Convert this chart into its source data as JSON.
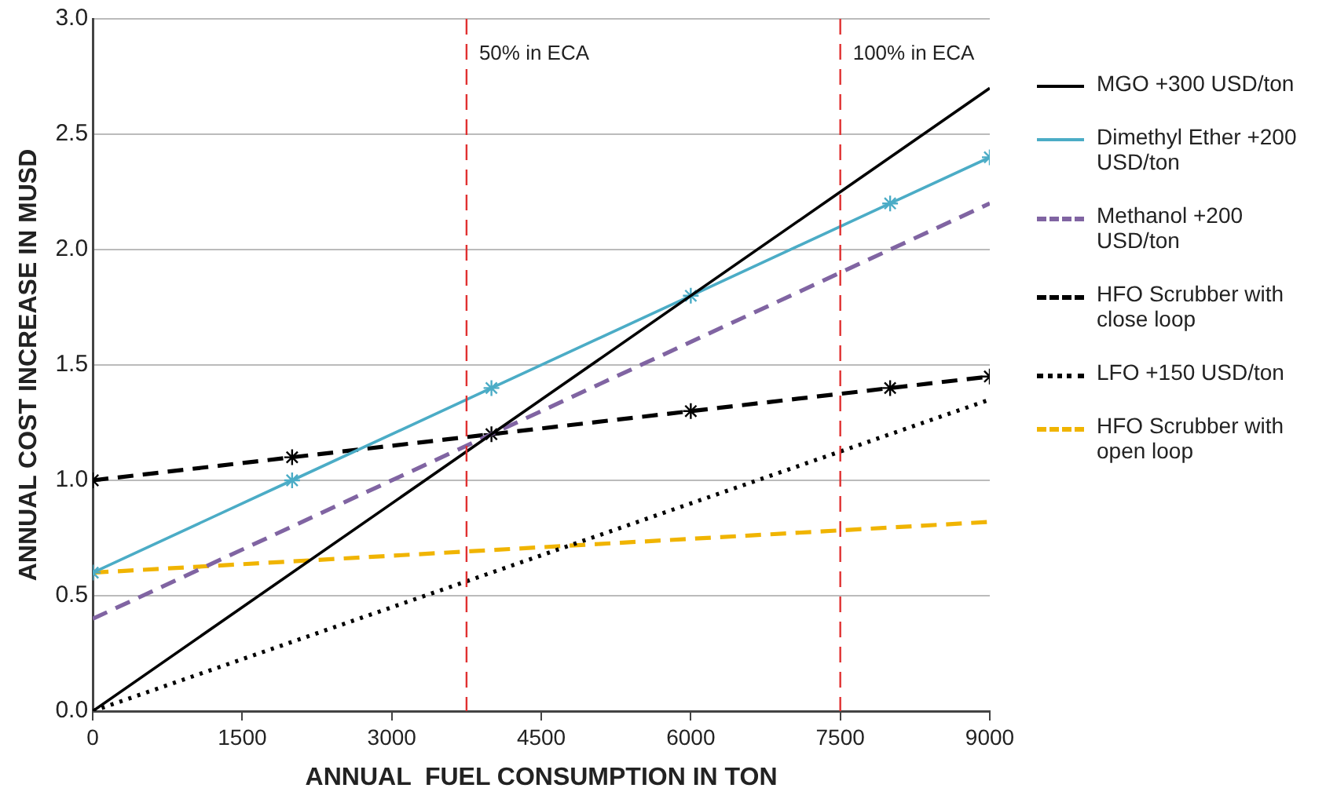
{
  "chart_data": {
    "type": "line",
    "xlabel": "ANNUAL  FUEL CONSUMPTION IN TON",
    "ylabel": "ANNUAL COST INCREASE IN MUSD",
    "xlim": [
      0,
      9000
    ],
    "xticks": [
      0,
      1500,
      3000,
      4500,
      6000,
      7500,
      9000
    ],
    "ylim": [
      0,
      3
    ],
    "yticks": [
      {
        "value": 0,
        "label": "0.0"
      },
      {
        "value": 0.5,
        "label": "0.5"
      },
      {
        "value": 1,
        "label": "1.0"
      },
      {
        "value": 1.5,
        "label": "1.5"
      },
      {
        "value": 2,
        "label": "2.0"
      },
      {
        "value": 2.5,
        "label": "2.5"
      },
      {
        "value": 3,
        "label": "3.0"
      }
    ],
    "grid": "y",
    "legend": "right",
    "series": [
      {
        "name": "MGO +300 USD/ton",
        "color": "#000000",
        "x": [
          0,
          9000
        ],
        "values": [
          0,
          2.7
        ],
        "line_style": "solid",
        "marker": "none"
      },
      {
        "name": "Dimethyl Ether +200 USD/ton",
        "color": "#4bacc6",
        "x": [
          0,
          2000,
          4000,
          6000,
          8000,
          9000
        ],
        "values": [
          0.6,
          1.0,
          1.4,
          1.8,
          2.2,
          2.4
        ],
        "line_style": "solid",
        "marker": "cross"
      },
      {
        "name": "Methanol +200 USD/ton",
        "color": "#8064a2",
        "x": [
          0,
          9000
        ],
        "values": [
          0.4,
          2.2
        ],
        "line_style": "dashed",
        "marker": "none"
      },
      {
        "name": "HFO Scrubber with close loop",
        "color": "#000000",
        "x": [
          0,
          2000,
          4000,
          6000,
          8000,
          9000
        ],
        "values": [
          1.0,
          1.1,
          1.2,
          1.3,
          1.4,
          1.45
        ],
        "line_style": "dashed",
        "marker": "cross"
      },
      {
        "name": "LFO +150 USD/ton",
        "color": "#000000",
        "x": [
          0,
          9000
        ],
        "values": [
          0,
          1.35
        ],
        "line_style": "dotted",
        "marker": "none"
      },
      {
        "name": "HFO Scrubber with open loop",
        "color": "#f0b400",
        "x": [
          0,
          9000
        ],
        "values": [
          0.6,
          0.82
        ],
        "line_style": "dashed",
        "marker": "none"
      }
    ],
    "ref_lines": [
      {
        "axis": "x",
        "value": 3750,
        "label": "50% in ECA",
        "color": "#e03030",
        "line_style": "dashed"
      },
      {
        "axis": "x",
        "value": 7500,
        "label": "100% in ECA",
        "color": "#e03030",
        "line_style": "dashed"
      }
    ]
  }
}
